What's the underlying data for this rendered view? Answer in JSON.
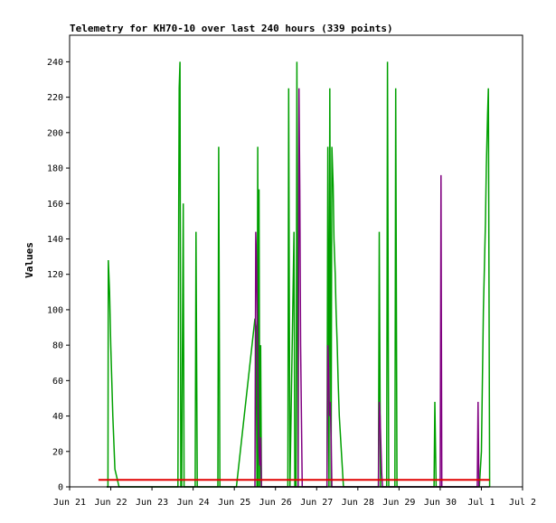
{
  "chart_data": {
    "type": "line",
    "title": "Telemetry for KH70-10 over last 240 hours (339 points)",
    "ylabel": "Values",
    "xlabel": "",
    "ylim": [
      0,
      255
    ],
    "xlim": [
      0,
      11
    ],
    "yticks": [
      0,
      20,
      40,
      60,
      80,
      100,
      120,
      140,
      160,
      180,
      200,
      220,
      240
    ],
    "xticks": [
      {
        "value": 0,
        "label": "Jun 21"
      },
      {
        "value": 1,
        "label": "Jun 22"
      },
      {
        "value": 2,
        "label": "Jun 23"
      },
      {
        "value": 3,
        "label": "Jun 24"
      },
      {
        "value": 4,
        "label": "Jun 25"
      },
      {
        "value": 5,
        "label": "Jun 26"
      },
      {
        "value": 6,
        "label": "Jun 27"
      },
      {
        "value": 7,
        "label": "Jun 28"
      },
      {
        "value": 8,
        "label": "Jun 29"
      },
      {
        "value": 9,
        "label": "Jun 30"
      },
      {
        "value": 10,
        "label": "Jul 1"
      },
      {
        "value": 11,
        "label": "Jul 2"
      }
    ],
    "grid": false,
    "legend": "none",
    "colors": {
      "green": "#00a000",
      "purple": "#800080",
      "red": "#e00000",
      "black": "#000000"
    },
    "series": [
      {
        "color": "#00a000",
        "x": [
          0.9,
          0.93,
          0.94,
          0.97,
          1.0,
          1.05,
          1.1,
          1.15,
          1.2,
          2.6,
          2.63,
          2.65,
          2.66,
          2.68,
          2.7,
          2.72,
          2.76,
          2.78,
          2.8,
          3.05,
          3.07,
          3.1,
          3.6,
          3.62,
          3.65,
          4.05,
          4.5,
          4.53,
          4.55,
          4.57,
          4.58,
          4.6,
          4.62,
          4.64,
          4.66,
          4.68,
          4.7,
          5.3,
          5.32,
          5.35,
          5.45,
          5.47,
          5.5,
          5.52,
          5.55,
          5.57,
          5.6,
          5.62,
          5.65,
          6.25,
          6.27,
          6.3,
          6.32,
          6.35,
          6.37,
          6.4,
          6.42,
          6.45,
          6.47,
          6.5,
          6.52,
          6.55,
          6.6,
          6.65,
          6.7,
          7.5,
          7.52,
          7.55,
          7.7,
          7.72,
          7.75,
          7.9,
          7.92,
          7.95,
          8.85,
          8.87,
          8.9,
          9.95,
          10.0,
          10.05,
          10.1,
          10.12,
          10.15,
          10.17,
          10.2
        ],
        "y": [
          0,
          0,
          128,
          110,
          80,
          40,
          10,
          5,
          0,
          0,
          0,
          160,
          225,
          240,
          0,
          0,
          160,
          0,
          0,
          0,
          144,
          0,
          0,
          192,
          0,
          0,
          95,
          90,
          0,
          192,
          0,
          168,
          0,
          80,
          0,
          0,
          0,
          0,
          225,
          0,
          144,
          0,
          0,
          240,
          0,
          0,
          0,
          0,
          0,
          0,
          192,
          0,
          225,
          0,
          192,
          170,
          140,
          120,
          100,
          80,
          60,
          40,
          20,
          0,
          0,
          0,
          144,
          0,
          0,
          240,
          0,
          0,
          225,
          0,
          0,
          48,
          0,
          0,
          20,
          100,
          150,
          180,
          210,
          225,
          0
        ]
      },
      {
        "color": "#800080",
        "x": [
          4.5,
          4.52,
          4.54,
          4.56,
          4.58,
          4.6,
          4.62,
          4.64,
          4.66,
          4.68,
          5.55,
          5.57,
          5.59,
          5.61,
          5.63,
          5.65,
          5.67,
          6.25,
          6.27,
          6.29,
          6.31,
          6.33,
          6.35,
          6.37,
          7.5,
          7.52,
          7.54,
          7.56,
          7.58,
          7.6,
          9.0,
          9.02,
          9.04,
          9.9,
          9.92,
          9.94
        ],
        "y": [
          0,
          144,
          126,
          90,
          40,
          20,
          12,
          28,
          0,
          0,
          0,
          225,
          168,
          80,
          40,
          0,
          0,
          0,
          80,
          66,
          40,
          48,
          30,
          0,
          0,
          48,
          40,
          24,
          8,
          0,
          0,
          176,
          0,
          0,
          48,
          0
        ]
      },
      {
        "color": "#e00000",
        "x": [
          0.7,
          10.2
        ],
        "y": [
          4,
          4
        ]
      },
      {
        "color": "#000000",
        "x": [
          0.9,
          10.2
        ],
        "y": [
          0,
          0
        ]
      }
    ]
  }
}
